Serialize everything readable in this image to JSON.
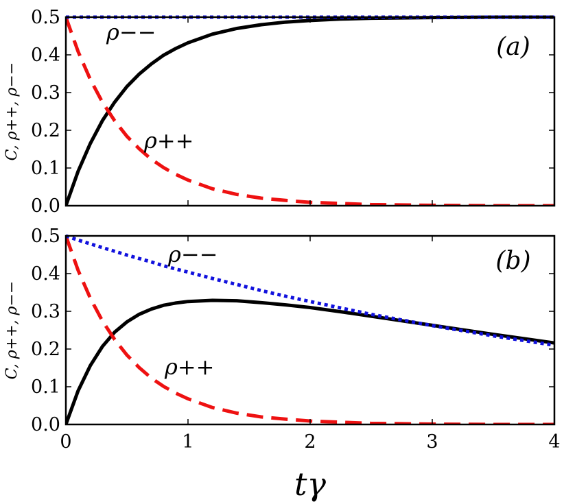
{
  "chart_data": [
    {
      "type": "line",
      "panel_label": "(a)",
      "ylabel": "C, ρ++, ρ−−",
      "xlabel": "",
      "xlim": [
        0,
        4
      ],
      "ylim": [
        0,
        0.5
      ],
      "xticks": [
        0,
        1,
        2,
        3,
        4
      ],
      "yticks": [
        "0.0",
        "0.1",
        "0.2",
        "0.3",
        "0.4",
        "0.5"
      ],
      "x": [
        0,
        0.1,
        0.2,
        0.3,
        0.4,
        0.5,
        0.6,
        0.7,
        0.8,
        0.9,
        1.0,
        1.2,
        1.4,
        1.6,
        1.8,
        2.0,
        2.25,
        2.5,
        2.75,
        3.0,
        3.5,
        4.0
      ],
      "series": [
        {
          "name": "C",
          "style": "solid",
          "color": "#000000",
          "values": [
            0.0,
            0.091,
            0.165,
            0.226,
            0.275,
            0.316,
            0.349,
            0.376,
            0.399,
            0.417,
            0.432,
            0.455,
            0.47,
            0.48,
            0.487,
            0.491,
            0.495,
            0.497,
            0.498,
            0.499,
            0.5,
            0.5
          ]
        },
        {
          "name": "ρ++",
          "style": "dashed",
          "color": "#ee1111",
          "values": [
            0.5,
            0.409,
            0.335,
            0.274,
            0.225,
            0.184,
            0.151,
            0.123,
            0.101,
            0.083,
            0.068,
            0.045,
            0.03,
            0.02,
            0.014,
            0.009,
            0.006,
            0.003,
            0.002,
            0.001,
            0.0,
            0.0
          ]
        },
        {
          "name": "ρ−−",
          "style": "dotted",
          "color": "#1111dd",
          "values": [
            0.5,
            0.5,
            0.5,
            0.5,
            0.5,
            0.5,
            0.5,
            0.5,
            0.5,
            0.5,
            0.5,
            0.5,
            0.5,
            0.5,
            0.5,
            0.5,
            0.5,
            0.5,
            0.5,
            0.5,
            0.5,
            0.5
          ]
        }
      ],
      "annotations": [
        {
          "label": "ρ−−",
          "x": 0.35,
          "y": 0.455
        },
        {
          "label": "ρ++",
          "x": 0.65,
          "y": 0.18
        }
      ]
    },
    {
      "type": "line",
      "panel_label": "(b)",
      "ylabel": "C, ρ++, ρ−−",
      "xlabel": "tγ",
      "xlim": [
        0,
        4
      ],
      "ylim": [
        0,
        0.5
      ],
      "xticks": [
        0,
        1,
        2,
        3,
        4
      ],
      "yticks": [
        "0.0",
        "0.1",
        "0.2",
        "0.3",
        "0.4",
        "0.5"
      ],
      "x": [
        0,
        0.1,
        0.2,
        0.3,
        0.4,
        0.5,
        0.6,
        0.7,
        0.8,
        0.9,
        1.0,
        1.2,
        1.4,
        1.6,
        1.8,
        2.0,
        2.25,
        2.5,
        2.75,
        3.0,
        3.5,
        4.0
      ],
      "series": [
        {
          "name": "C",
          "style": "solid",
          "color": "#000000",
          "values": [
            0.0,
            0.089,
            0.156,
            0.207,
            0.245,
            0.272,
            0.292,
            0.306,
            0.316,
            0.322,
            0.326,
            0.329,
            0.328,
            0.323,
            0.317,
            0.31,
            0.299,
            0.287,
            0.275,
            0.263,
            0.239,
            0.216
          ]
        },
        {
          "name": "ρ++",
          "style": "dashed",
          "color": "#ee1111",
          "values": [
            0.5,
            0.409,
            0.335,
            0.274,
            0.225,
            0.184,
            0.151,
            0.123,
            0.101,
            0.083,
            0.068,
            0.045,
            0.03,
            0.02,
            0.014,
            0.009,
            0.006,
            0.003,
            0.002,
            0.001,
            0.0,
            0.0
          ]
        },
        {
          "name": "ρ−−",
          "style": "dotted",
          "color": "#1111dd",
          "values": [
            0.5,
            0.489,
            0.479,
            0.469,
            0.459,
            0.449,
            0.44,
            0.431,
            0.421,
            0.412,
            0.404,
            0.387,
            0.371,
            0.355,
            0.34,
            0.326,
            0.309,
            0.292,
            0.277,
            0.262,
            0.235,
            0.21
          ]
        }
      ],
      "annotations": [
        {
          "label": "ρ−−",
          "x": 0.85,
          "y": 0.41
        },
        {
          "label": "ρ++",
          "x": 0.8,
          "y": 0.14
        }
      ]
    }
  ]
}
